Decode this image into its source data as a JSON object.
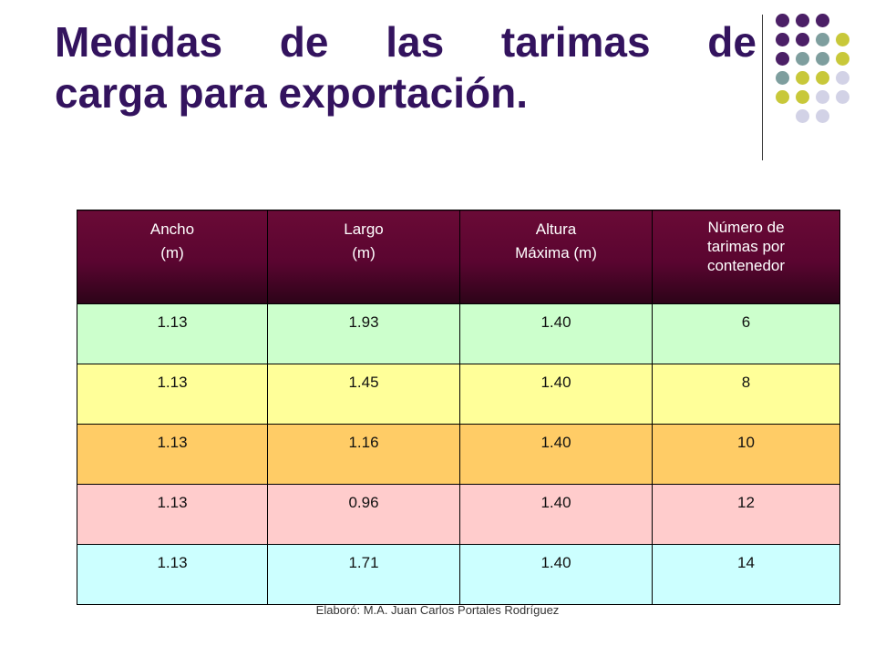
{
  "title": {
    "line1": "Medidas de las tarimas de",
    "line2": "carga para exportación."
  },
  "decoration": {
    "colors": {
      "purple": "#4b1f66",
      "teal": "#7e9e9e",
      "olive": "#c8c83a",
      "lavender": "#d2d2e6"
    },
    "grid": [
      [
        "purple",
        "purple",
        "purple",
        null
      ],
      [
        "purple",
        "purple",
        "teal",
        "olive"
      ],
      [
        "purple",
        "teal",
        "teal",
        "olive"
      ],
      [
        "teal",
        "olive",
        "olive",
        "lavender"
      ],
      [
        "olive",
        "olive",
        "lavender",
        "lavender"
      ],
      [
        null,
        "lavender",
        "lavender",
        null
      ]
    ]
  },
  "table": {
    "headers": [
      {
        "line1": "Ancho",
        "line2": "(m)"
      },
      {
        "line1": "Largo",
        "line2": "(m)"
      },
      {
        "line1": "Altura",
        "line2": "Máxima (m)"
      },
      {
        "line1": "Número de",
        "line2": "tarimas por",
        "line3": "contenedor"
      }
    ],
    "row_colors": [
      "#ccffcc",
      "#ffff99",
      "#ffcc66",
      "#ffcccc",
      "#ccffff"
    ],
    "rows": [
      [
        "1.13",
        "1.93",
        "1.40",
        "6"
      ],
      [
        "1.13",
        "1.45",
        "1.40",
        "8"
      ],
      [
        "1.13",
        "1.16",
        "1.40",
        "10"
      ],
      [
        "1.13",
        "0.96",
        "1.40",
        "12"
      ],
      [
        "1.13",
        "1.71",
        "1.40",
        "14"
      ]
    ]
  },
  "footer": "Elaboró: M.A. Juan Carlos Portales Rodríguez"
}
